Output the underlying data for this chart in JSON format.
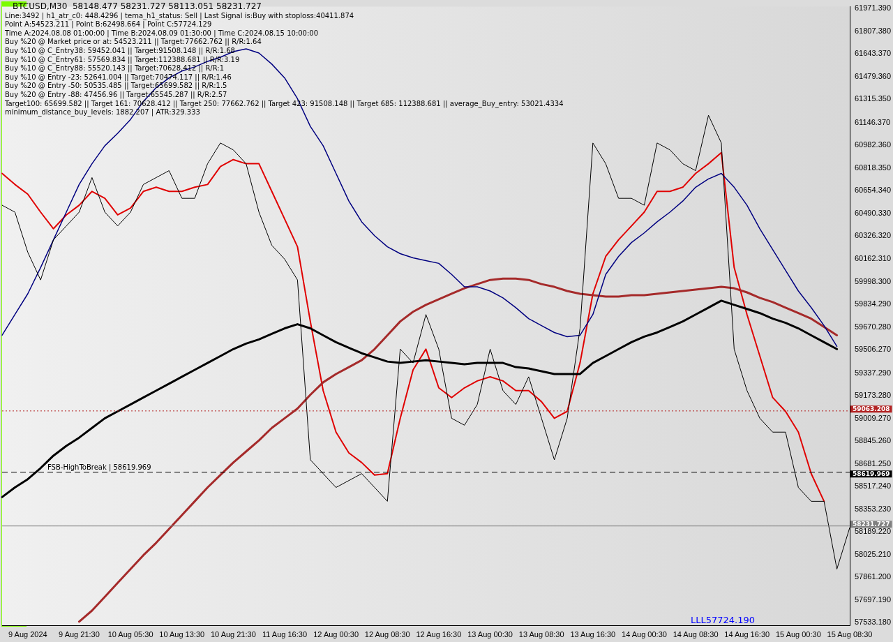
{
  "chart_data": {
    "type": "line",
    "title": "BTCUSD,M30  58148.477 58231.727 58113.051 58231.727",
    "annotations": [
      "Line:3492 | h1_atr_c0: 448.4296 | tema_h1_status: Sell | Last Signal is:Buy with stoploss:40411.874",
      "Point A:54523.211 | Point B:62498.664 | Point C:57724.129",
      "Time A:2024.08.08 01:00:00 | Time B:2024.08.09 01:30:00 | Time C:2024.08.15 10:00:00",
      "Buy %20 @ Market price or at: 54523.211 || Target:77662.762 || R/R:1.64",
      "Buy %10 @ C_Entry38: 59452.041 || Target:91508.148 || R/R:1.68",
      "Buy %10 @ C_Entry61: 57569.834 || Target:112388.681 || R/R:3.19",
      "Buy %10 @ C_Entry88: 55520.143 || Target:70628.412 || R/R:1",
      "Buy %10 @ Entry -23: 52641.004 || Target:70474.117 || R/R:1.46",
      "Buy %20 @ Entry -50: 50535.485 || Target:65699.582 || R/R:1.5",
      "Buy %20 @ Entry -88: 47456.96 || Target:65545.287 || R/R:2.57",
      "Target100: 65699.582 || Target 161: 70628.412 || Target 250: 77662.762 || Target 423: 91508.148 || Target 685: 112388.681 || average_Buy_entry: 53021.4334",
      "minimum_distance_buy_levels: 1882.207 | ATR:329.333",
      "LLL57724.190",
      {
        "text": "FSB-HighToBreak | 58619.969",
        "y": 58619.969
      }
    ],
    "categories": [
      null,
      null,
      "9 Aug 2024",
      null,
      null,
      null,
      "9 Aug 21:30",
      null,
      null,
      null,
      "10 Aug 05:30",
      null,
      null,
      null,
      "10 Aug 13:30",
      null,
      null,
      null,
      "10 Aug 21:30",
      null,
      null,
      null,
      "11 Aug 16:30",
      null,
      null,
      null,
      "12 Aug 00:30",
      null,
      null,
      null,
      "12 Aug 08:30",
      null,
      null,
      null,
      "12 Aug 16:30",
      null,
      null,
      null,
      "13 Aug 00:30",
      null,
      null,
      null,
      "13 Aug 08:30",
      null,
      null,
      null,
      "13 Aug 16:30",
      null,
      null,
      null,
      "14 Aug 00:30",
      null,
      null,
      null,
      "14 Aug 08:30",
      null,
      null,
      null,
      "14 Aug 16:30",
      null,
      null,
      null,
      "15 Aug 00:30",
      null,
      null,
      null,
      "15 Aug 08:30"
    ],
    "series": [
      {
        "color": "#000000",
        "values": [
          60550,
          60500,
          60210,
          60010,
          60300,
          60400,
          60500,
          60750,
          60500,
          60400,
          60500,
          60700,
          60750,
          60800,
          60600,
          60600,
          60850,
          61000,
          60950,
          60850,
          60500,
          60260,
          60160,
          60010,
          58710,
          58610,
          58510,
          58560,
          58610,
          58510,
          58410,
          59510,
          59410,
          59760,
          59510,
          59010,
          58960,
          59110,
          59510,
          59210,
          59110,
          59310,
          59010,
          58710,
          59010,
          59660,
          61000,
          60850,
          60600,
          60600,
          60550,
          61000,
          60950,
          60850,
          60800,
          61200,
          61000,
          59510,
          59210,
          59010,
          58910,
          58910,
          58510,
          58410,
          58410,
          57920,
          58220
        ]
      },
      {
        "color": "#000080",
        "values": [
          59610,
          59760,
          59910,
          60100,
          60300,
          60500,
          60700,
          60850,
          60980,
          61070,
          61170,
          61300,
          61400,
          61470,
          61520,
          61550,
          61590,
          61620,
          61660,
          61680,
          61650,
          61570,
          61470,
          61320,
          61120,
          60980,
          60780,
          60580,
          60430,
          60330,
          60250,
          60200,
          60170,
          60150,
          60130,
          60050,
          59960,
          59960,
          59930,
          59880,
          59810,
          59730,
          59680,
          59630,
          59600,
          59610,
          59760,
          60050,
          60180,
          60280,
          60350,
          60430,
          60500,
          60580,
          60680,
          60740,
          60780,
          60680,
          60550,
          60380,
          60230,
          60080,
          59930,
          59810,
          59680,
          59530,
          null
        ]
      },
      {
        "color": "#000000",
        "values": [
          58440,
          58510,
          58570,
          58650,
          58740,
          58810,
          58870,
          58940,
          59010,
          59060,
          59110,
          59160,
          59210,
          59260,
          59310,
          59360,
          59410,
          59460,
          59510,
          59550,
          59580,
          59620,
          59660,
          59690,
          59660,
          59610,
          59560,
          59520,
          59480,
          59450,
          59420,
          59410,
          59420,
          59430,
          59420,
          59410,
          59400,
          59410,
          59410,
          59410,
          59380,
          59370,
          59350,
          59330,
          59330,
          59330,
          59410,
          59460,
          59510,
          59560,
          59600,
          59630,
          59670,
          59710,
          59760,
          59810,
          59860,
          59830,
          59800,
          59770,
          59730,
          59700,
          59660,
          59610,
          59560,
          59510,
          null
        ]
      },
      {
        "color": "#a52a2a",
        "values": [
          null,
          null,
          null,
          null,
          null,
          null,
          57540,
          57620,
          57720,
          57820,
          57920,
          58020,
          58110,
          58210,
          58310,
          58410,
          58510,
          58600,
          58690,
          58770,
          58850,
          58940,
          59010,
          59080,
          59180,
          59270,
          59330,
          59380,
          59430,
          59510,
          59610,
          59710,
          59780,
          59830,
          59870,
          59910,
          59950,
          59980,
          60010,
          60020,
          60020,
          60010,
          59980,
          59960,
          59930,
          59910,
          59900,
          59890,
          59890,
          59900,
          59900,
          59910,
          59920,
          59930,
          59940,
          59950,
          59960,
          59950,
          59920,
          59880,
          59850,
          59810,
          59770,
          59730,
          59670,
          59610,
          null
        ]
      },
      {
        "color": "#e00000",
        "values": [
          60780,
          60700,
          60630,
          60500,
          60380,
          60480,
          60550,
          60650,
          60600,
          60480,
          60530,
          60650,
          60680,
          60650,
          60650,
          60680,
          60700,
          60830,
          60880,
          60850,
          60850,
          60650,
          60450,
          60250,
          59710,
          59210,
          58910,
          58760,
          58690,
          58600,
          58610,
          59010,
          59360,
          59510,
          59230,
          59160,
          59230,
          59280,
          59310,
          59280,
          59210,
          59210,
          59130,
          59010,
          59060,
          59410,
          59910,
          60180,
          60300,
          60400,
          60500,
          60650,
          60650,
          60680,
          60780,
          60850,
          60930,
          60100,
          59760,
          59460,
          59160,
          59060,
          58910,
          58610,
          58410,
          null,
          null
        ]
      }
    ],
    "ylim": [
      57510,
      61985
    ],
    "yticks": [
      {
        "value": 61971.39,
        "label": "61971.390"
      },
      {
        "value": 61807.38,
        "label": "61807.380"
      },
      {
        "value": 61643.37,
        "label": "61643.370"
      },
      {
        "value": 61479.36,
        "label": "61479.360"
      },
      {
        "value": 61315.35,
        "label": "61315.350"
      },
      {
        "value": 61146.37,
        "label": "61146.370"
      },
      {
        "value": 60982.36,
        "label": "60982.360"
      },
      {
        "value": 60818.35,
        "label": "60818.350"
      },
      {
        "value": 60654.34,
        "label": "60654.340"
      },
      {
        "value": 60490.33,
        "label": "60490.330"
      },
      {
        "value": 60326.32,
        "label": "60326.320"
      },
      {
        "value": 60162.31,
        "label": "60162.310"
      },
      {
        "value": 59998.3,
        "label": "59998.300"
      },
      {
        "value": 59834.29,
        "label": "59834.290"
      },
      {
        "value": 59670.28,
        "label": "59670.280"
      },
      {
        "value": 59506.27,
        "label": "59506.270"
      },
      {
        "value": 59337.29,
        "label": "59337.290"
      },
      {
        "value": 59173.28,
        "label": "59173.280"
      },
      {
        "value": 59009.27,
        "label": "59009.270"
      },
      {
        "value": 58845.26,
        "label": "58845.260"
      },
      {
        "value": 58681.25,
        "label": "58681.250"
      },
      {
        "value": 58517.24,
        "label": "58517.240"
      },
      {
        "value": 58353.23,
        "label": "58353.230"
      },
      {
        "value": 58189.22,
        "label": "58189.220"
      },
      {
        "value": 58025.21,
        "label": "58025.210"
      },
      {
        "value": 57861.2,
        "label": "57861.200"
      },
      {
        "value": 57697.19,
        "label": "57697.190"
      },
      {
        "value": 57533.18,
        "label": "57533.180"
      }
    ],
    "ref_lines": [
      {
        "axis": "y",
        "value": 59063.208,
        "label": "59063.208",
        "color": "#b22222",
        "line_style": "dotted"
      },
      {
        "axis": "y",
        "value": 58619.969,
        "label": "58619.969",
        "color": "#000000",
        "line_style": "dashed"
      },
      {
        "axis": "y",
        "value": 58231.727,
        "label": "58231.727",
        "color": "#808080",
        "line_style": "solid"
      }
    ],
    "grid": false,
    "legend": false,
    "marker": "none",
    "line_style": "solid"
  }
}
